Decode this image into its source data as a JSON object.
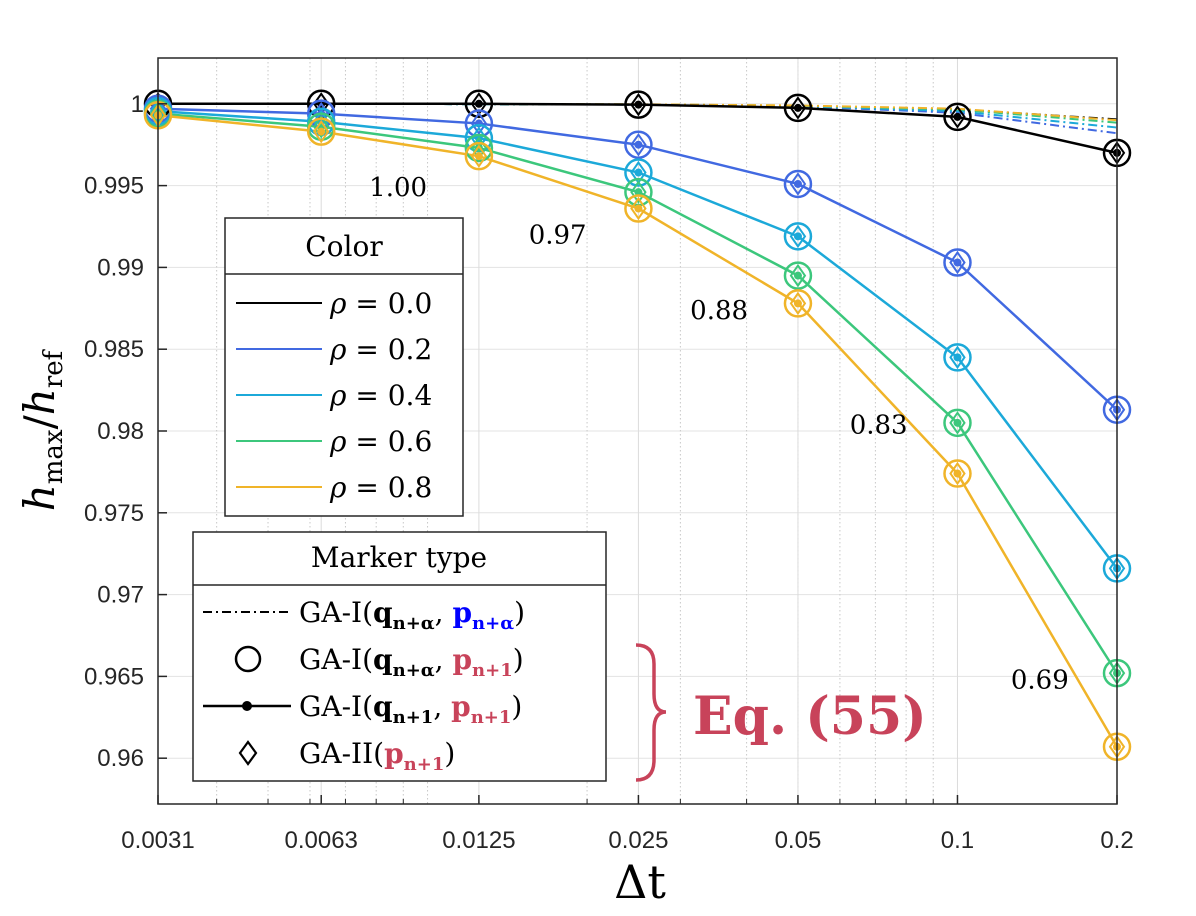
{
  "chart_data": {
    "type": "line",
    "xscale": "log",
    "title": "",
    "xlabel": "Δt",
    "ylabel": "h_max/h_ref",
    "ylabel_base": "h",
    "ylabel_num_sub": "max",
    "ylabel_den_sub": "ref",
    "ylim": [
      0.9572,
      1.0028
    ],
    "xlim": [
      0.0031,
      0.2
    ],
    "grid": true,
    "x": [
      0.0031,
      0.0063,
      0.0125,
      0.025,
      0.05,
      0.1,
      0.2
    ],
    "x_tick_labels": [
      "0.0031",
      "0.0063",
      "0.0125",
      "0.025",
      "0.05",
      "0.1",
      "0.2"
    ],
    "y_ticks": [
      0.96,
      0.965,
      0.97,
      0.975,
      0.98,
      0.985,
      0.99,
      0.995,
      1
    ],
    "y_tick_labels": [
      "0.96",
      "0.965",
      "0.97",
      "0.975",
      "0.98",
      "0.985",
      "0.99",
      "0.995",
      "1"
    ],
    "series": [
      {
        "name": "ρ = 0.0",
        "color": "#000000",
        "variant": "GA-I(q_n+α, p_n+α)",
        "values": [
          1.0,
          1.0,
          0.99998,
          0.99995,
          0.99988,
          0.99965,
          0.99905
        ]
      },
      {
        "name": "ρ = 0.2",
        "color": "#4169E1",
        "variant": "GA-I(q_n+α, p_n+α)",
        "values": [
          1.0,
          1.0,
          0.99998,
          0.99995,
          0.99985,
          0.99945,
          0.9982
        ]
      },
      {
        "name": "ρ = 0.4",
        "color": "#1CA9D9",
        "variant": "GA-I(q_n+α, p_n+α)",
        "values": [
          1.0,
          1.0,
          0.99998,
          0.99995,
          0.99987,
          0.99955,
          0.99855
        ]
      },
      {
        "name": "ρ = 0.6",
        "color": "#3CC77C",
        "variant": "GA-I(q_n+α, p_n+α)",
        "values": [
          1.0,
          1.0,
          0.99998,
          0.99996,
          0.99989,
          0.99965,
          0.99885
        ]
      },
      {
        "name": "ρ = 0.8",
        "color": "#F0B429",
        "variant": "GA-I(q_n+α, p_n+α)",
        "values": [
          1.0,
          1.0,
          0.99999,
          0.99997,
          0.9999,
          0.9997,
          0.999
        ]
      },
      {
        "name": "ρ = 0.0",
        "color": "#000000",
        "variant": "GA-I(q_n+α, p_n+1), GA-I(q_n+1, p_n+1), GA-II(p_n+1)",
        "values": [
          1.0,
          1.0,
          1.0,
          0.99995,
          0.99975,
          0.9992,
          0.997
        ]
      },
      {
        "name": "ρ = 0.2",
        "color": "#4169E1",
        "variant": "GA-I(q_n+α, p_n+1), GA-I(q_n+1, p_n+1), GA-II(p_n+1)",
        "values": [
          0.9997,
          0.9994,
          0.9988,
          0.9975,
          0.9951,
          0.9903,
          0.9813
        ]
      },
      {
        "name": "ρ = 0.4",
        "color": "#1CA9D9",
        "variant": "GA-I(q_n+α, p_n+1), GA-I(q_n+1, p_n+1), GA-II(p_n+1)",
        "values": [
          0.99955,
          0.9989,
          0.9979,
          0.9958,
          0.9919,
          0.9845,
          0.9716
        ]
      },
      {
        "name": "ρ = 0.6",
        "color": "#3CC77C",
        "variant": "GA-I(q_n+α, p_n+1), GA-I(q_n+1, p_n+1), GA-II(p_n+1)",
        "values": [
          0.9994,
          0.9986,
          0.9973,
          0.9946,
          0.9895,
          0.9805,
          0.9652
        ]
      },
      {
        "name": "ρ = 0.8",
        "color": "#F0B429",
        "variant": "GA-I(q_n+α, p_n+1), GA-I(q_n+1, p_n+1), GA-II(p_n+1)",
        "values": [
          0.9993,
          0.9983,
          0.9968,
          0.9936,
          0.9878,
          0.9774,
          0.9607
        ]
      }
    ],
    "annotations": [
      {
        "text": "1.00",
        "x": 0.0088,
        "y": 0.9949
      },
      {
        "text": "0.97",
        "x": 0.0176,
        "y": 0.992
      },
      {
        "text": "0.88",
        "x": 0.0355,
        "y": 0.9874
      },
      {
        "text": "0.83",
        "x": 0.071,
        "y": 0.9804
      },
      {
        "text": "0.69",
        "x": 0.143,
        "y": 0.9648
      }
    ],
    "color_legend": {
      "title": "Color",
      "entries": [
        {
          "var": "ρ",
          "text": " = 0.0",
          "color": "#000000"
        },
        {
          "var": "ρ",
          "text": " = 0.2",
          "color": "#4169E1"
        },
        {
          "var": "ρ",
          "text": " = 0.4",
          "color": "#1CA9D9"
        },
        {
          "var": "ρ",
          "text": " = 0.6",
          "color": "#3CC77C"
        },
        {
          "var": "ρ",
          "text": " = 0.8",
          "color": "#F0B429"
        }
      ]
    },
    "marker_legend": {
      "title": "Marker type",
      "entries": [
        {
          "style": "dashdot",
          "prefix": "GA-I(",
          "q": "q",
          "qsub": "n+α",
          "sep": ", ",
          "p": "p",
          "psub": "n+α",
          "pcolor": "#0000FF",
          "suffix": ")"
        },
        {
          "style": "circle",
          "prefix": "GA-I(",
          "q": "q",
          "qsub": "n+α",
          "sep": ", ",
          "p": "p",
          "psub": "n+1",
          "pcolor": "#C8435A",
          "suffix": ")"
        },
        {
          "style": "solid-dot",
          "prefix": "GA-I(",
          "q": "q",
          "qsub": "n+1",
          "sep": ", ",
          "p": "p",
          "psub": "n+1",
          "pcolor": "#C8435A",
          "suffix": ")"
        },
        {
          "style": "diamond",
          "prefix": "GA-II(",
          "q": "",
          "qsub": "",
          "sep": "",
          "p": "p",
          "psub": "n+1",
          "pcolor": "#C8435A",
          "suffix": ")"
        }
      ]
    },
    "equation_label": {
      "text": "Eq. (55)",
      "color": "#C8435A"
    }
  }
}
